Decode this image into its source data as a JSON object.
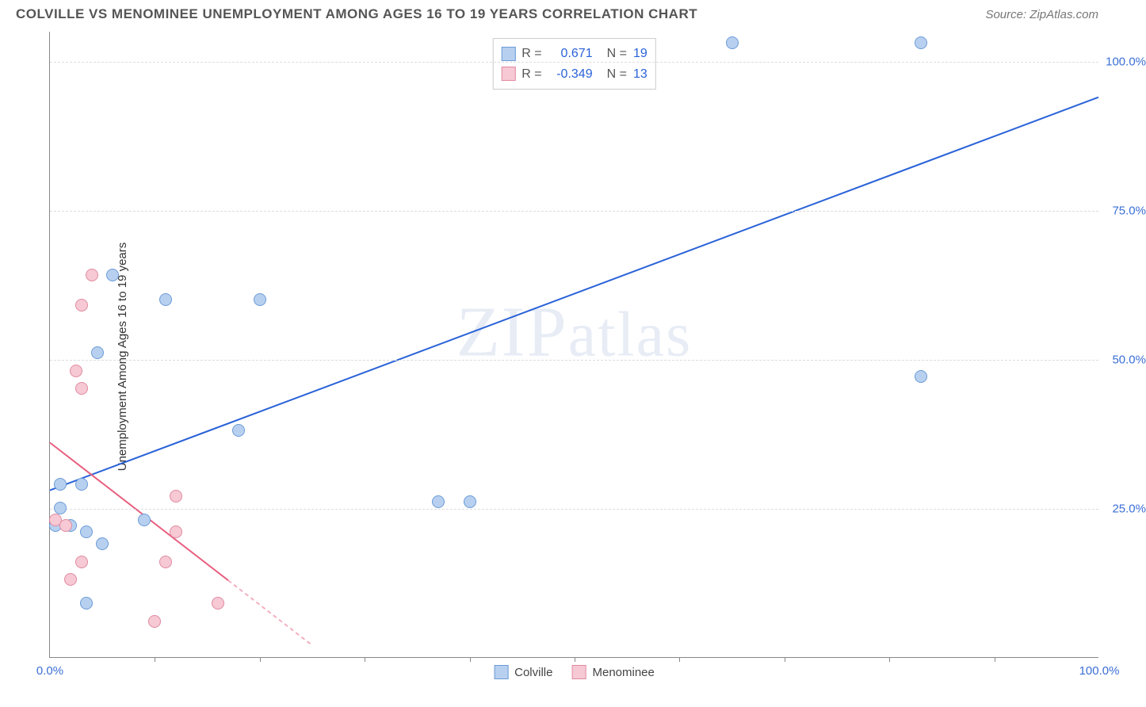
{
  "header": {
    "title": "COLVILLE VS MENOMINEE UNEMPLOYMENT AMONG AGES 16 TO 19 YEARS CORRELATION CHART",
    "source": "Source: ZipAtlas.com"
  },
  "watermark": "ZIPatlas",
  "chart": {
    "type": "scatter",
    "ylabel": "Unemployment Among Ages 16 to 19 years",
    "xlim": [
      0,
      100
    ],
    "ylim": [
      0,
      105
    ],
    "yticks": [
      25.0,
      50.0,
      75.0,
      100.0
    ],
    "ytick_labels": [
      "25.0%",
      "50.0%",
      "75.0%",
      "100.0%"
    ],
    "xtick_major": [
      0,
      100
    ],
    "xtick_labels": [
      "0.0%",
      "100.0%"
    ],
    "xtick_minor": [
      10,
      20,
      30,
      40,
      50,
      60,
      70,
      80,
      90
    ],
    "background_color": "#ffffff",
    "grid_color": "#dddddd",
    "axis_color": "#888888",
    "series": [
      {
        "name": "Colville",
        "fill": "#b8d0ef",
        "stroke": "#6a9bd8",
        "marker_size": 16,
        "r_value": "0.671",
        "n_value": "19",
        "trend": {
          "x1": 0,
          "y1": 28,
          "x2": 100,
          "y2": 94,
          "color": "#2a62d8",
          "width": 2,
          "dash_after_x": null
        },
        "points": [
          {
            "x": 65,
            "y": 103
          },
          {
            "x": 83,
            "y": 103
          },
          {
            "x": 6,
            "y": 64
          },
          {
            "x": 11,
            "y": 60
          },
          {
            "x": 20,
            "y": 60
          },
          {
            "x": 4.5,
            "y": 51
          },
          {
            "x": 83,
            "y": 47
          },
          {
            "x": 18,
            "y": 38
          },
          {
            "x": 1,
            "y": 29
          },
          {
            "x": 3,
            "y": 29
          },
          {
            "x": 37,
            "y": 26
          },
          {
            "x": 40,
            "y": 26
          },
          {
            "x": 1,
            "y": 25
          },
          {
            "x": 9,
            "y": 23
          },
          {
            "x": 3.5,
            "y": 21
          },
          {
            "x": 5,
            "y": 19
          },
          {
            "x": 2,
            "y": 22
          },
          {
            "x": 0.5,
            "y": 22
          },
          {
            "x": 3.5,
            "y": 9
          }
        ]
      },
      {
        "name": "Menominee",
        "fill": "#f6c9d4",
        "stroke": "#e18aa0",
        "marker_size": 16,
        "r_value": "-0.349",
        "n_value": "13",
        "trend": {
          "x1": 0,
          "y1": 36,
          "x2": 25,
          "y2": 2,
          "color": "#e85f7f",
          "width": 2,
          "dash_after_x": 17
        },
        "points": [
          {
            "x": 4,
            "y": 64
          },
          {
            "x": 3,
            "y": 59
          },
          {
            "x": 2.5,
            "y": 48
          },
          {
            "x": 3,
            "y": 45
          },
          {
            "x": 12,
            "y": 27
          },
          {
            "x": 0.5,
            "y": 23
          },
          {
            "x": 1.5,
            "y": 22
          },
          {
            "x": 12,
            "y": 21
          },
          {
            "x": 3,
            "y": 16
          },
          {
            "x": 11,
            "y": 16
          },
          {
            "x": 2,
            "y": 13
          },
          {
            "x": 16,
            "y": 9
          },
          {
            "x": 10,
            "y": 6
          }
        ]
      }
    ],
    "legend_top": {
      "r_label": "R =",
      "n_label": "N =",
      "value_color": "#2a62d8",
      "text_color": "#555555"
    },
    "legend_bottom": {
      "items": [
        "Colville",
        "Menominee"
      ]
    }
  }
}
